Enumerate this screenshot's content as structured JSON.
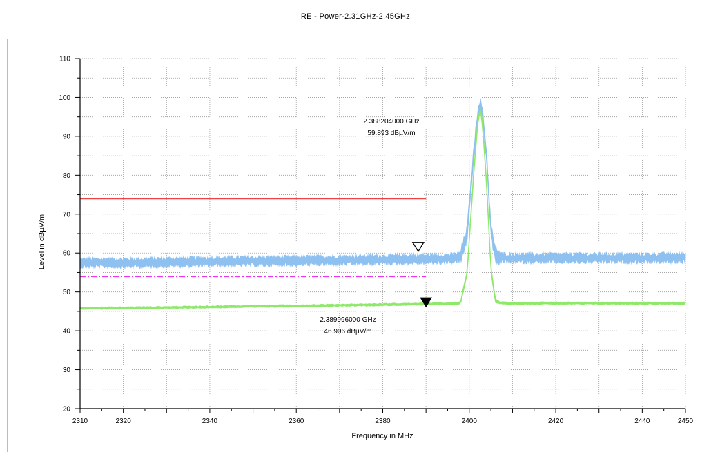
{
  "chart_data": {
    "type": "line",
    "title": "RE - Power-2.31GHz-2.45GHz",
    "xlabel": "Frequency in MHz",
    "ylabel": "Level in dBµV/m",
    "xlim": [
      2310,
      2450
    ],
    "ylim": [
      20,
      110
    ],
    "x_ticks": [
      2310,
      2320,
      2340,
      2360,
      2380,
      2400,
      2420,
      2440,
      2450
    ],
    "y_ticks": [
      20,
      30,
      40,
      50,
      60,
      70,
      80,
      90,
      100,
      110
    ],
    "grid": true,
    "colors": {
      "peak": "#8ec1f0",
      "average": "#8ee86a",
      "peak_limit": "#ee4444",
      "avg_limit": "#ee33ee",
      "grid": "#9a9a9a"
    },
    "series": [
      {
        "role": "peak-trace",
        "x": [
          2310,
          2320,
          2340,
          2360,
          2380,
          2390,
          2396,
          2398,
          2399.5,
          2401,
          2402,
          2402.5,
          2403,
          2404,
          2405,
          2406,
          2407,
          2410,
          2420,
          2440,
          2450
        ],
        "y": [
          57.5,
          57.5,
          57.8,
          58.0,
          58.3,
          58.5,
          58.6,
          59.0,
          65,
          85,
          96,
          98,
          96,
          85,
          66,
          59.5,
          58.8,
          58.7,
          58.7,
          58.7,
          58.8
        ]
      },
      {
        "role": "average-trace",
        "x": [
          2310,
          2330,
          2350,
          2370,
          2390,
          2396,
          2398,
          2399.5,
          2401,
          2402,
          2402.5,
          2403,
          2404,
          2405,
          2406,
          2407,
          2410,
          2430,
          2450
        ],
        "y": [
          45.8,
          46.0,
          46.3,
          46.6,
          46.9,
          47.0,
          47.2,
          55,
          80,
          94,
          97,
          94,
          78,
          56,
          47.8,
          47.2,
          47.1,
          47.1,
          47.1
        ]
      },
      {
        "role": "peak-limit",
        "x": [
          2310,
          2390
        ],
        "y": [
          74,
          74
        ]
      },
      {
        "role": "average-limit",
        "x": [
          2310,
          2390
        ],
        "y": [
          54,
          54
        ]
      }
    ],
    "markers": [
      {
        "type": "open-triangle",
        "x": 2388.2,
        "y": 59.893,
        "freq_label": "2.388204000 GHz",
        "level_label": "59.893 dBµV/m"
      },
      {
        "type": "filled-triangle",
        "x": 2390.0,
        "y": 46.906,
        "freq_label": "2.389996000 GHz",
        "level_label": "46.906 dBµV/m"
      }
    ]
  }
}
